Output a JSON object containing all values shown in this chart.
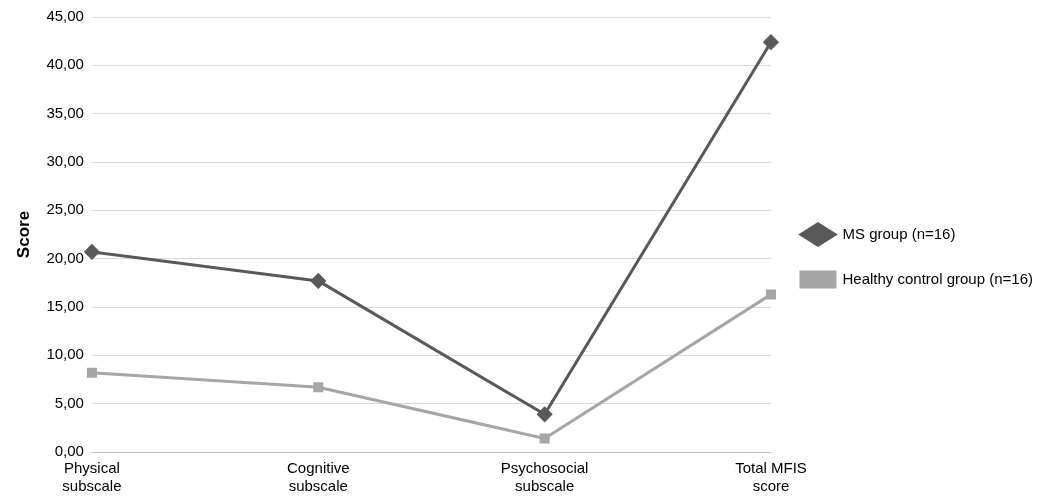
{
  "chart_data": {
    "type": "line",
    "ylabel": "Score",
    "categories": [
      "Physical subscale",
      "Cognitive subscale",
      "Psychosocial subscale",
      "Total MFIS score"
    ],
    "series": [
      {
        "name": "MS group (n=16)",
        "color": "#595959",
        "marker": "diamond",
        "values": [
          20.7,
          17.7,
          3.9,
          42.4
        ]
      },
      {
        "name": "Healthy control group (n=16)",
        "color": "#a6a6a6",
        "marker": "square",
        "values": [
          8.2,
          6.7,
          1.4,
          16.3
        ]
      }
    ],
    "ylim": [
      0,
      45
    ],
    "yticks": [
      {
        "value": 0,
        "label": "0,00"
      },
      {
        "value": 5,
        "label": "5,00"
      },
      {
        "value": 10,
        "label": "10,00"
      },
      {
        "value": 15,
        "label": "15,00"
      },
      {
        "value": 20,
        "label": "20,00"
      },
      {
        "value": 25,
        "label": "25,00"
      },
      {
        "value": 30,
        "label": "30,00"
      },
      {
        "value": 35,
        "label": "35,00"
      },
      {
        "value": 40,
        "label": "40,00"
      },
      {
        "value": 45,
        "label": "45,00"
      }
    ],
    "grid": "y",
    "legend": "right",
    "line_style": "solid"
  }
}
